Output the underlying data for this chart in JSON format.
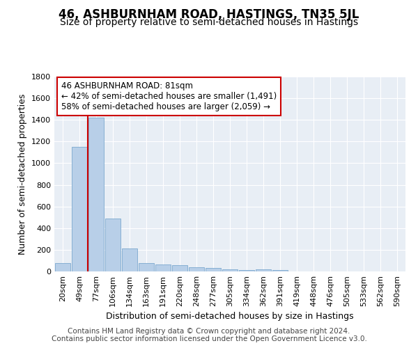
{
  "title": "46, ASHBURNHAM ROAD, HASTINGS, TN35 5JL",
  "subtitle": "Size of property relative to semi-detached houses in Hastings",
  "xlabel": "Distribution of semi-detached houses by size in Hastings",
  "ylabel": "Number of semi-detached properties",
  "categories": [
    "20sqm",
    "49sqm",
    "77sqm",
    "106sqm",
    "134sqm",
    "163sqm",
    "191sqm",
    "220sqm",
    "248sqm",
    "277sqm",
    "305sqm",
    "334sqm",
    "362sqm",
    "391sqm",
    "419sqm",
    "448sqm",
    "476sqm",
    "505sqm",
    "533sqm",
    "562sqm",
    "590sqm"
  ],
  "values": [
    75,
    1150,
    1420,
    490,
    215,
    80,
    65,
    55,
    40,
    30,
    20,
    15,
    20,
    10,
    0,
    0,
    0,
    0,
    0,
    0,
    0
  ],
  "bar_color": "#b8cfe8",
  "bar_edge_color": "#6a9cc8",
  "highlight_index": 2,
  "highlight_color": "#cc0000",
  "annotation_line1": "46 ASHBURNHAM ROAD: 81sqm",
  "annotation_line2": "← 42% of semi-detached houses are smaller (1,491)",
  "annotation_line3": "58% of semi-detached houses are larger (2,059) →",
  "annotation_box_color": "#ffffff",
  "annotation_box_edge_color": "#cc0000",
  "ylim": [
    0,
    1800
  ],
  "yticks": [
    0,
    200,
    400,
    600,
    800,
    1000,
    1200,
    1400,
    1600,
    1800
  ],
  "footer_text": "Contains HM Land Registry data © Crown copyright and database right 2024.\nContains public sector information licensed under the Open Government Licence v3.0.",
  "bg_color": "#ffffff",
  "plot_bg_color": "#e8eef5",
  "grid_color": "#ffffff",
  "title_fontsize": 12,
  "subtitle_fontsize": 10,
  "axis_label_fontsize": 9,
  "tick_fontsize": 8,
  "footer_fontsize": 7.5
}
